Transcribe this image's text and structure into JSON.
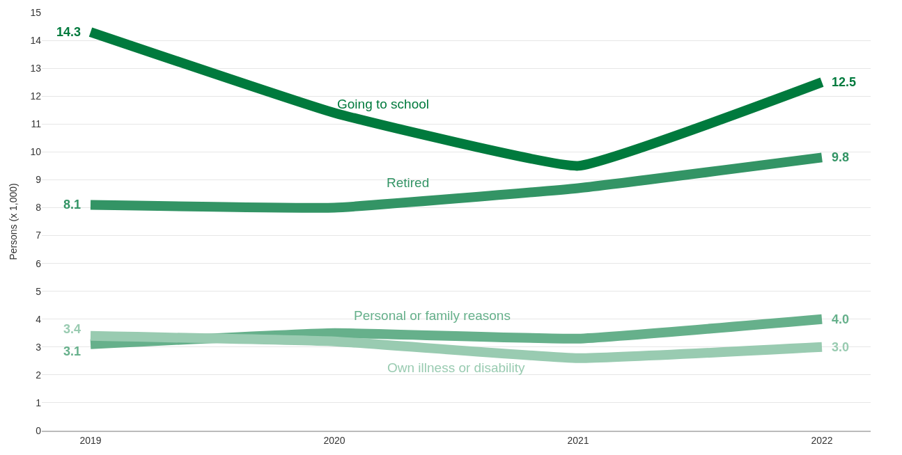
{
  "chart_data": {
    "type": "line",
    "ylabel": "Persons (x 1,000)",
    "categories": [
      "2019",
      "2020",
      "2021",
      "2022"
    ],
    "series": [
      {
        "name": "Going to school",
        "color": "#007a3d",
        "values": [
          14.3,
          11.4,
          9.5,
          12.5
        ],
        "value_labels": [
          "14.3",
          null,
          null,
          "12.5"
        ]
      },
      {
        "name": "Retired",
        "color": "#339465",
        "values": [
          8.1,
          8.0,
          8.7,
          9.8
        ],
        "value_labels": [
          "8.1",
          null,
          null,
          "9.8"
        ]
      },
      {
        "name": "Personal or family reasons",
        "color": "#66b08b",
        "values": [
          3.1,
          3.5,
          3.3,
          4.0
        ],
        "value_labels": [
          "3.1",
          null,
          null,
          "4.0"
        ]
      },
      {
        "name": "Own illness or disability",
        "color": "#99cbb1",
        "values": [
          3.4,
          3.2,
          2.6,
          3.0
        ],
        "value_labels": [
          "3.4",
          null,
          null,
          "3.0"
        ]
      }
    ],
    "ylim": [
      0,
      15
    ],
    "yticks": [
      0,
      1,
      2,
      3,
      4,
      5,
      6,
      7,
      8,
      9,
      10,
      11,
      12,
      13,
      14,
      15
    ],
    "grid": "y",
    "legend": false,
    "marker": "none",
    "line_style": "solid"
  }
}
